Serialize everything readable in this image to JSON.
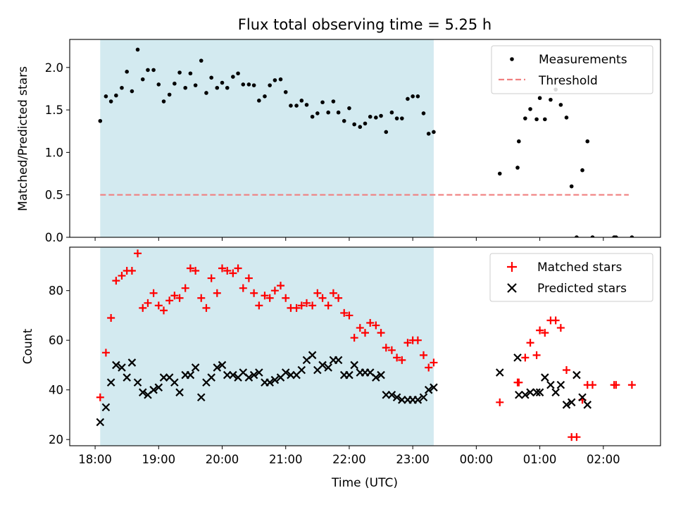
{
  "chart_data": [
    {
      "type": "scatter",
      "title": "Flux total observing time = 5.25 h",
      "ylabel": "Matched/Predicted stars",
      "xlabel": "",
      "xlim": [
        17.6,
        26.9
      ],
      "ylim": [
        0.0,
        2.33
      ],
      "yticks": [
        0.0,
        0.5,
        1.0,
        1.5,
        2.0
      ],
      "ytick_labels": [
        "0.0",
        "0.5",
        "1.0",
        "1.5",
        "2.0"
      ],
      "shaded_span": [
        18.08,
        23.33
      ],
      "shaded_color": "#d3eaf0",
      "legend": {
        "position": "top-right",
        "entries": [
          {
            "label": "Measurements",
            "marker": "dot",
            "color": "#000000"
          },
          {
            "label": "Threshold",
            "marker": "dashed-line",
            "color": "#f08080"
          }
        ]
      },
      "series": [
        {
          "name": "Measurements",
          "color": "#000000",
          "marker": "dot",
          "x": [
            18.08,
            18.17,
            18.25,
            18.33,
            18.42,
            18.5,
            18.58,
            18.67,
            18.75,
            18.83,
            18.92,
            19.0,
            19.08,
            19.17,
            19.25,
            19.33,
            19.42,
            19.5,
            19.58,
            19.67,
            19.75,
            19.83,
            19.92,
            20.0,
            20.08,
            20.17,
            20.25,
            20.33,
            20.42,
            20.5,
            20.58,
            20.67,
            20.75,
            20.83,
            20.92,
            21.0,
            21.08,
            21.17,
            21.25,
            21.33,
            21.42,
            21.5,
            21.58,
            21.67,
            21.75,
            21.83,
            21.92,
            22.0,
            22.08,
            22.17,
            22.25,
            22.33,
            22.42,
            22.5,
            22.58,
            22.67,
            22.75,
            22.83,
            22.92,
            23.0,
            23.08,
            23.17,
            23.25,
            23.33,
            24.37,
            24.65,
            24.67,
            24.77,
            24.85,
            24.95,
            25.0,
            25.08,
            25.17,
            25.25,
            25.33,
            25.42,
            25.5,
            25.58,
            25.67,
            25.75,
            25.83,
            26.17,
            26.2,
            26.45
          ],
          "y": [
            1.37,
            1.66,
            1.6,
            1.67,
            1.76,
            1.95,
            1.72,
            2.21,
            1.86,
            1.97,
            1.97,
            1.8,
            1.6,
            1.68,
            1.81,
            1.94,
            1.76,
            1.93,
            1.79,
            2.08,
            1.7,
            1.88,
            1.76,
            1.82,
            1.76,
            1.89,
            1.93,
            1.8,
            1.8,
            1.79,
            1.61,
            1.66,
            1.79,
            1.85,
            1.86,
            1.71,
            1.55,
            1.55,
            1.61,
            1.56,
            1.42,
            1.46,
            1.59,
            1.47,
            1.6,
            1.47,
            1.37,
            1.52,
            1.33,
            1.3,
            1.34,
            1.42,
            1.41,
            1.43,
            1.24,
            1.47,
            1.4,
            1.4,
            1.63,
            1.66,
            1.66,
            1.46,
            1.22,
            1.24,
            0.75,
            0.82,
            1.13,
            1.4,
            1.51,
            1.39,
            1.64,
            1.39,
            1.62,
            1.74,
            1.56,
            1.41,
            0.6,
            0.0,
            0.79,
            1.13,
            0.0,
            0.0,
            0.0,
            0.0
          ]
        },
        {
          "name": "Threshold",
          "color": "#f08080",
          "style": "dashed",
          "x": [
            18.08,
            26.4
          ],
          "y": [
            0.5,
            0.5
          ]
        }
      ]
    },
    {
      "type": "scatter",
      "title": "",
      "ylabel": "Count",
      "xlabel": "Time (UTC)",
      "xlim": [
        17.6,
        26.9
      ],
      "ylim": [
        17.5,
        97.5
      ],
      "yticks": [
        20,
        40,
        60,
        80
      ],
      "ytick_labels": [
        "20",
        "40",
        "60",
        "80"
      ],
      "xticks": [
        18,
        19,
        20,
        21,
        22,
        23,
        24,
        25,
        26
      ],
      "xtick_labels": [
        "18:00",
        "19:00",
        "20:00",
        "21:00",
        "22:00",
        "23:00",
        "00:00",
        "01:00",
        "02:00"
      ],
      "shaded_span": [
        18.08,
        23.33
      ],
      "shaded_color": "#d3eaf0",
      "legend": {
        "position": "top-right",
        "entries": [
          {
            "label": "Matched stars",
            "marker": "plus",
            "color": "#ff0000"
          },
          {
            "label": "Predicted stars",
            "marker": "x",
            "color": "#000000"
          }
        ]
      },
      "series": [
        {
          "name": "Matched stars",
          "color": "#ff0000",
          "marker": "plus",
          "x": [
            18.08,
            18.17,
            18.25,
            18.33,
            18.42,
            18.5,
            18.58,
            18.67,
            18.75,
            18.83,
            18.92,
            19.0,
            19.08,
            19.17,
            19.25,
            19.33,
            19.42,
            19.5,
            19.58,
            19.67,
            19.75,
            19.83,
            19.92,
            20.0,
            20.08,
            20.17,
            20.25,
            20.33,
            20.42,
            20.5,
            20.58,
            20.67,
            20.75,
            20.83,
            20.92,
            21.0,
            21.08,
            21.17,
            21.25,
            21.33,
            21.42,
            21.5,
            21.58,
            21.67,
            21.75,
            21.83,
            21.92,
            22.0,
            22.08,
            22.17,
            22.25,
            22.33,
            22.42,
            22.5,
            22.58,
            22.67,
            22.75,
            22.83,
            22.92,
            23.0,
            23.08,
            23.17,
            23.25,
            23.33,
            24.37,
            24.65,
            24.67,
            24.77,
            24.85,
            24.95,
            25.0,
            25.08,
            25.17,
            25.25,
            25.33,
            25.42,
            25.5,
            25.58,
            25.67,
            25.75,
            25.83,
            26.17,
            26.2,
            26.45
          ],
          "y": [
            37,
            55,
            69,
            84,
            86,
            88,
            88,
            95,
            73,
            75,
            79,
            74,
            72,
            76,
            78,
            77,
            81,
            89,
            88,
            77,
            73,
            85,
            79,
            89,
            88,
            87,
            89,
            81,
            85,
            79,
            74,
            78,
            77,
            80,
            82,
            77,
            73,
            73,
            74,
            75,
            74,
            79,
            77,
            74,
            79,
            77,
            71,
            70,
            61,
            65,
            63,
            67,
            66,
            63,
            57,
            56,
            53,
            52,
            59,
            60,
            60,
            54,
            49,
            51,
            35,
            43,
            43,
            53,
            59,
            54,
            64,
            63,
            68,
            68,
            65,
            48,
            21,
            21,
            36,
            42,
            42,
            42,
            42,
            42
          ]
        },
        {
          "name": "Predicted stars",
          "color": "#000000",
          "marker": "x",
          "x": [
            18.08,
            18.17,
            18.25,
            18.33,
            18.42,
            18.5,
            18.58,
            18.67,
            18.75,
            18.83,
            18.92,
            19.0,
            19.08,
            19.17,
            19.25,
            19.33,
            19.42,
            19.5,
            19.58,
            19.67,
            19.75,
            19.83,
            19.92,
            20.0,
            20.08,
            20.17,
            20.25,
            20.33,
            20.42,
            20.5,
            20.58,
            20.67,
            20.75,
            20.83,
            20.92,
            21.0,
            21.08,
            21.17,
            21.25,
            21.33,
            21.42,
            21.5,
            21.58,
            21.67,
            21.75,
            21.83,
            21.92,
            22.0,
            22.08,
            22.17,
            22.25,
            22.33,
            22.42,
            22.5,
            22.58,
            22.67,
            22.75,
            22.83,
            22.92,
            23.0,
            23.08,
            23.17,
            23.25,
            23.33,
            24.37,
            24.65,
            24.67,
            24.77,
            24.85,
            24.95,
            25.0,
            25.08,
            25.17,
            25.25,
            25.33,
            25.42,
            25.5,
            25.58,
            25.67,
            25.75
          ],
          "y": [
            27,
            33,
            43,
            50,
            49,
            45,
            51,
            43,
            39,
            38,
            40,
            41,
            45,
            45,
            43,
            39,
            46,
            46,
            49,
            37,
            43,
            45,
            49,
            50,
            46,
            46,
            45,
            47,
            45,
            46,
            47,
            43,
            43,
            44,
            45,
            47,
            46,
            46,
            48,
            52,
            54,
            48,
            50,
            49,
            52,
            52,
            46,
            46,
            50,
            47,
            47,
            47,
            45,
            46,
            38,
            38,
            37,
            36,
            36,
            36,
            36,
            37,
            40,
            41,
            47,
            53,
            38,
            38,
            39,
            39,
            39,
            45,
            42,
            39,
            42,
            34,
            35,
            46,
            37,
            34
          ]
        }
      ]
    }
  ]
}
